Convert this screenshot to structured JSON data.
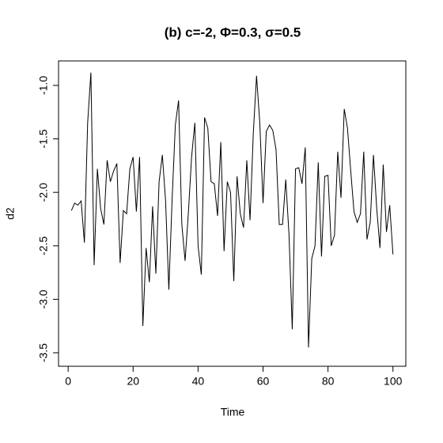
{
  "chart_data": {
    "type": "line",
    "title": "(b) c=-2, Φ=0.3, σ=0.5",
    "x_label": "Time",
    "y_label": "d2",
    "x": [
      1,
      2,
      3,
      4,
      5,
      6,
      7,
      8,
      9,
      10,
      11,
      12,
      13,
      14,
      15,
      16,
      17,
      18,
      19,
      20,
      21,
      22,
      23,
      24,
      25,
      26,
      27,
      28,
      29,
      30,
      31,
      32,
      33,
      34,
      35,
      36,
      37,
      38,
      39,
      40,
      41,
      42,
      43,
      44,
      45,
      46,
      47,
      48,
      49,
      50,
      51,
      52,
      53,
      54,
      55,
      56,
      57,
      58,
      59,
      60,
      61,
      62,
      63,
      64,
      65,
      66,
      67,
      68,
      69,
      70,
      71,
      72,
      73,
      74,
      75,
      76,
      77,
      78,
      79,
      80,
      81,
      82,
      83,
      84,
      85,
      86,
      87,
      88,
      89,
      90,
      91,
      92,
      93,
      94,
      95,
      96,
      97,
      98,
      99,
      100
    ],
    "series": [
      {
        "color": "#000000",
        "values": [
          -2.17,
          -2.1,
          -2.12,
          -2.08,
          -2.47,
          -1.35,
          -0.88,
          -2.68,
          -1.78,
          -2.15,
          -2.3,
          -1.7,
          -1.9,
          -1.8,
          -1.73,
          -2.66,
          -2.17,
          -2.2,
          -1.78,
          -1.67,
          -2.18,
          -1.67,
          -3.25,
          -2.52,
          -2.84,
          -2.13,
          -2.76,
          -1.9,
          -1.65,
          -2.08,
          -2.91,
          -2.07,
          -1.37,
          -1.14,
          -2.3,
          -2.64,
          -2.2,
          -1.67,
          -1.35,
          -2.5,
          -2.77,
          -1.3,
          -1.4,
          -1.9,
          -1.92,
          -2.22,
          -1.53,
          -2.55,
          -1.9,
          -2.0,
          -2.83,
          -1.85,
          -2.2,
          -2.33,
          -1.7,
          -2.26,
          -1.45,
          -0.91,
          -1.35,
          -2.1,
          -1.43,
          -1.37,
          -1.42,
          -1.6,
          -2.3,
          -2.3,
          -1.88,
          -2.4,
          -3.28,
          -1.78,
          -1.77,
          -1.92,
          -1.58,
          -3.45,
          -2.62,
          -2.5,
          -1.72,
          -2.6,
          -1.85,
          -1.84,
          -2.5,
          -2.4,
          -1.62,
          -2.05,
          -1.22,
          -1.4,
          -1.8,
          -2.18,
          -2.28,
          -2.2,
          -1.62,
          -2.44,
          -2.28,
          -1.65,
          -2.15,
          -2.52,
          -1.74,
          -2.37,
          -2.12,
          -2.58
        ]
      }
    ],
    "xlim": [
      -2.96,
      103.96
    ],
    "ylim": [
      -3.626,
      -0.771
    ],
    "xticks": [
      0,
      20,
      40,
      60,
      80,
      100
    ],
    "yticks": [
      {
        "value": -1.0,
        "label": "-1.0"
      },
      -1.5,
      {
        "value": -2.0,
        "label": "-2.0"
      },
      -2.5,
      {
        "value": -3.0,
        "label": "-3.0"
      },
      -3.5
    ]
  }
}
